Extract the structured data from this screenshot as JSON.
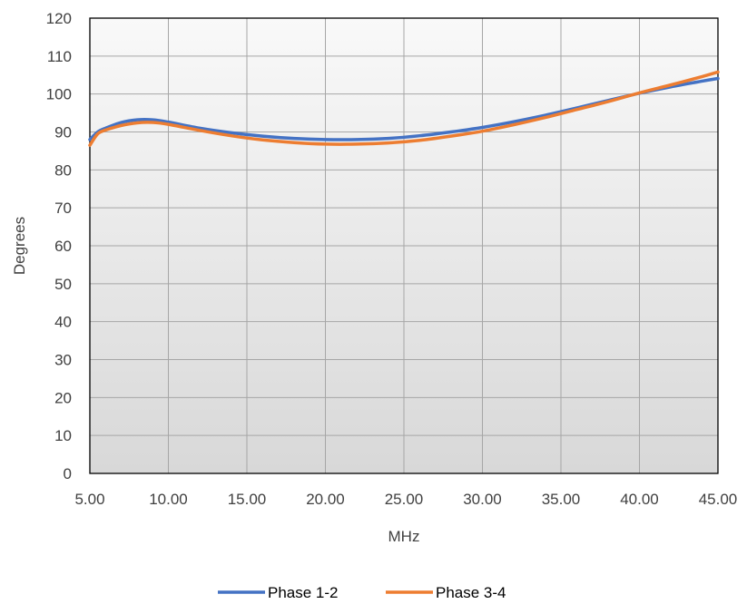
{
  "chart_data": {
    "type": "line",
    "title": "",
    "xlabel": "MHz",
    "ylabel": "Degrees",
    "xlim": [
      5,
      45
    ],
    "ylim": [
      0,
      120
    ],
    "xticks": [
      5,
      10,
      15,
      20,
      25,
      30,
      35,
      40,
      45
    ],
    "xtick_labels": [
      "5.00",
      "10.00",
      "15.00",
      "20.00",
      "25.00",
      "30.00",
      "35.00",
      "40.00",
      "45.00"
    ],
    "yticks": [
      0,
      10,
      20,
      30,
      40,
      50,
      60,
      70,
      80,
      90,
      100,
      110,
      120
    ],
    "ytick_labels": [
      "0",
      "10",
      "20",
      "30",
      "40",
      "50",
      "60",
      "70",
      "80",
      "90",
      "100",
      "110",
      "120"
    ],
    "grid": true,
    "legend_position": "bottom",
    "series": [
      {
        "name": "Phase 1-2",
        "color": "#4472C4",
        "x": [
          5,
          5.5,
          6,
          7,
          8,
          9,
          10,
          12,
          14,
          16,
          18,
          20,
          22,
          24,
          26,
          28,
          30,
          32,
          34,
          36,
          38,
          40,
          42,
          44,
          45
        ],
        "y": [
          88,
          90,
          91,
          92.5,
          93.2,
          93.2,
          92.6,
          91.0,
          89.8,
          88.9,
          88.3,
          88.0,
          88.0,
          88.3,
          89.0,
          90.0,
          91.2,
          92.7,
          94.4,
          96.3,
          98.3,
          100.2,
          101.9,
          103.4,
          104.1
        ]
      },
      {
        "name": "Phase 3-4",
        "color": "#ED7D31",
        "x": [
          5,
          5.5,
          6,
          7,
          8,
          9,
          10,
          12,
          14,
          16,
          18,
          20,
          22,
          24,
          26,
          28,
          30,
          32,
          34,
          36,
          38,
          40,
          42,
          44,
          45
        ],
        "y": [
          86.5,
          89.5,
          90.5,
          91.7,
          92.4,
          92.5,
          92.0,
          90.4,
          89.0,
          87.9,
          87.2,
          86.8,
          86.8,
          87.1,
          87.8,
          88.9,
          90.2,
          91.9,
          93.8,
          95.9,
          98.0,
          100.3,
          102.4,
          104.6,
          105.8
        ]
      }
    ]
  }
}
